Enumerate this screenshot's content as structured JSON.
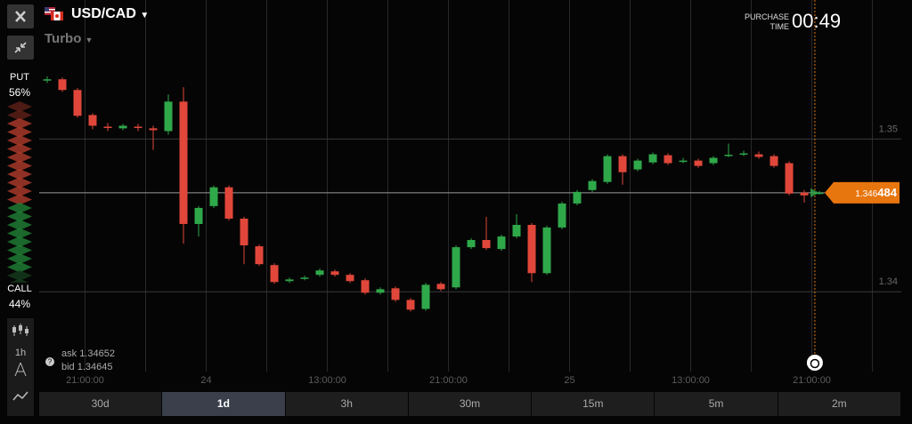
{
  "header": {
    "pair": "USD/CAD",
    "mode": "Turbo",
    "purchase_label": [
      "PURCHASE",
      "TIME"
    ],
    "timer": "00:49"
  },
  "sidebar": {
    "put_label": "PUT",
    "put_share": "56%",
    "call_label": "CALL",
    "call_share": "44%",
    "interval": "1h"
  },
  "quote": {
    "ask_label": "ask",
    "ask": 1.34652,
    "bid_label": "bid",
    "bid": 1.34645
  },
  "timeframes": {
    "options": [
      "30d",
      "1d",
      "3h",
      "30m",
      "15m",
      "5m",
      "2m"
    ],
    "selected": 1
  },
  "chart_data": {
    "type": "candlestick",
    "up_color": "#2fa84a",
    "down_color": "#e0473a",
    "grid": true,
    "x": [
      0,
      1,
      2,
      3,
      4,
      5,
      6,
      7,
      8,
      9,
      10,
      11,
      12,
      13,
      14,
      15,
      16,
      17,
      18,
      19,
      20,
      21,
      22,
      23,
      24,
      25,
      26,
      27,
      28,
      29,
      30,
      31,
      32,
      33,
      34,
      35,
      36,
      37,
      38,
      39,
      40,
      41,
      42,
      43,
      44,
      45,
      46,
      47,
      48,
      49,
      50,
      51
    ],
    "open": [
      1.35385,
      1.35391,
      1.35321,
      1.35157,
      1.35081,
      1.3507,
      1.35081,
      1.3507,
      1.35052,
      1.35245,
      1.34444,
      1.34561,
      1.34684,
      1.34479,
      1.34298,
      1.34175,
      1.3407,
      1.34087,
      1.34111,
      1.34134,
      1.34111,
      1.34076,
      1.33994,
      1.34023,
      1.33947,
      1.33888,
      1.34052,
      1.34029,
      1.34292,
      1.34339,
      1.3428,
      1.34362,
      1.34438,
      1.34122,
      1.34421,
      1.34578,
      1.34666,
      1.34719,
      1.34888,
      1.34801,
      1.34847,
      1.34894,
      1.34856,
      1.34859,
      1.34842,
      1.34894,
      1.34903,
      1.349,
      1.34888,
      1.34842,
      1.34649,
      1.34643
    ],
    "high": [
      1.3541,
      1.35403,
      1.35333,
      1.35169,
      1.35105,
      1.35099,
      1.35099,
      1.35087,
      1.35292,
      1.35339,
      1.34561,
      1.34696,
      1.34696,
      1.34491,
      1.3431,
      1.34187,
      1.34093,
      1.34105,
      1.34152,
      1.34146,
      1.34123,
      1.34088,
      1.34029,
      1.34035,
      1.33959,
      1.34058,
      1.34064,
      1.34304,
      1.34351,
      1.34491,
      1.34374,
      1.34508,
      1.3445,
      1.34433,
      1.3459,
      1.34666,
      1.34737,
      1.349,
      1.349,
      1.34871,
      1.34912,
      1.34906,
      1.34877,
      1.34871,
      1.34889,
      1.3497,
      1.34924,
      1.34918,
      1.349,
      1.34854,
      1.34666,
      1.3466
    ],
    "low": [
      1.35367,
      1.35309,
      1.3514,
      1.35064,
      1.35052,
      1.35058,
      1.35052,
      1.34929,
      1.35029,
      1.34315,
      1.34362,
      1.34549,
      1.34467,
      1.34181,
      1.34169,
      1.34052,
      1.34058,
      1.34075,
      1.34099,
      1.34099,
      1.34058,
      1.33982,
      1.33982,
      1.33935,
      1.33871,
      1.33876,
      1.34005,
      1.34017,
      1.3428,
      1.34274,
      1.34268,
      1.3435,
      1.34064,
      1.3411,
      1.34409,
      1.34566,
      1.34654,
      1.34707,
      1.34701,
      1.34789,
      1.34835,
      1.3483,
      1.34841,
      1.34812,
      1.3483,
      1.34882,
      1.34888,
      1.34871,
      1.34812,
      1.34631,
      1.34584,
      1.34637
    ],
    "close": [
      1.35391,
      1.35321,
      1.35152,
      1.35087,
      1.35076,
      1.35087,
      1.35076,
      1.35058,
      1.35245,
      1.34444,
      1.34549,
      1.34684,
      1.34479,
      1.34304,
      1.34181,
      1.34064,
      1.34081,
      1.34093,
      1.3414,
      1.34111,
      1.3407,
      1.33994,
      1.34017,
      1.33947,
      1.33883,
      1.34046,
      1.34017,
      1.34292,
      1.34339,
      1.34286,
      1.34362,
      1.34438,
      1.34122,
      1.34421,
      1.34578,
      1.34654,
      1.34725,
      1.34888,
      1.34783,
      1.34859,
      1.349,
      1.34842,
      1.34859,
      1.34824,
      1.34877,
      1.34897,
      1.34906,
      1.34883,
      1.34824,
      1.34643,
      1.34631,
      1.34649
    ],
    "xlim": [
      -0.53,
      56.41
    ],
    "xticks": [
      {
        "value": 2.5,
        "label": "21:00:00"
      },
      {
        "value": 10.5,
        "label": "24"
      },
      {
        "value": 18.5,
        "label": "13:00:00"
      },
      {
        "value": 26.5,
        "label": "21:00:00"
      },
      {
        "value": 34.5,
        "label": "25"
      },
      {
        "value": 42.5,
        "label": "13:00:00"
      },
      {
        "value": 50.5,
        "label": "21:00:00"
      }
    ],
    "x_minor_ticks": [
      6.5,
      14.5,
      22.5,
      30.5,
      38.5,
      46.5,
      54.5
    ],
    "ylim": [
      1.3335,
      1.3591
    ],
    "yticks": [
      1.34,
      1.35
    ],
    "current_price": 1.346484,
    "price_label": [
      "1.346",
      "484"
    ],
    "price_color": "#e8760e",
    "expiry_x": 50.7
  }
}
